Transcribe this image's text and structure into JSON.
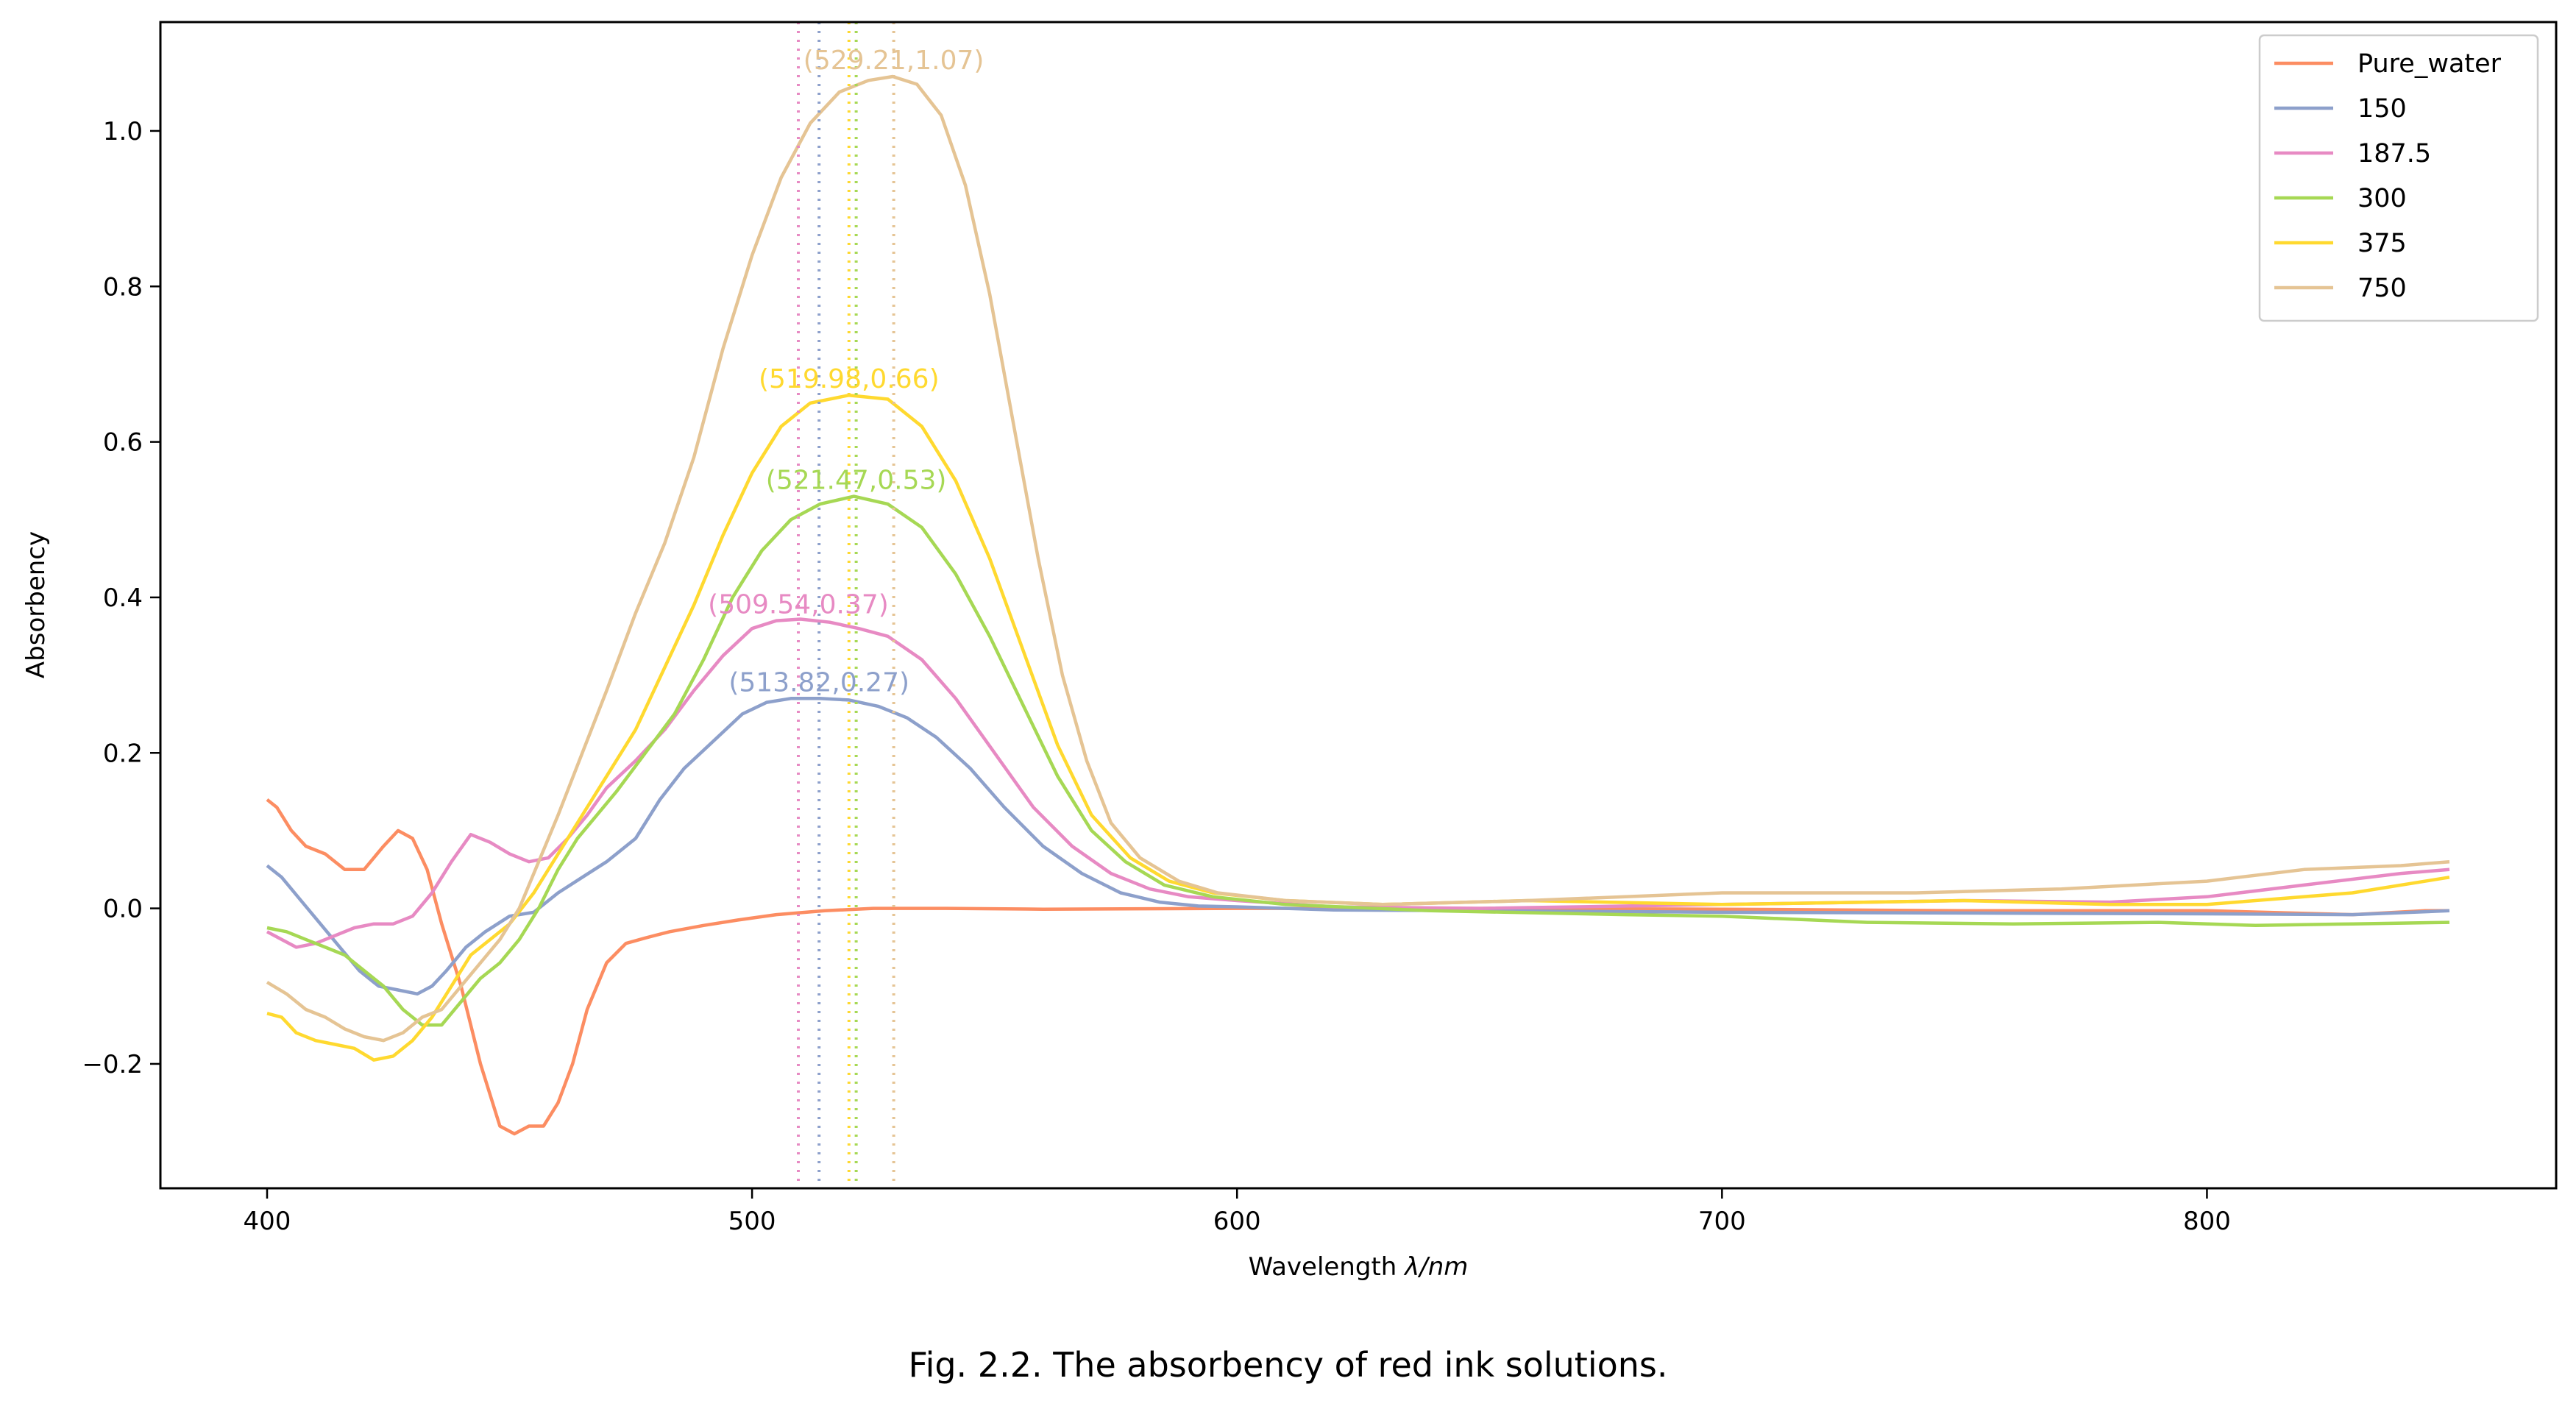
{
  "caption": "Fig. 2.2. The absorbency of red ink solutions.",
  "chart_data": {
    "type": "line",
    "xlabel": "Wavelength λ/nm",
    "xlabel_main": "Wavelength ",
    "xlabel_italic": "λ/nm",
    "ylabel": "Absorbency",
    "xlim": [
      378,
      872
    ],
    "ylim": [
      -0.36,
      1.14
    ],
    "xticks": [
      400,
      500,
      600,
      700,
      800
    ],
    "xtick_labels": [
      "400",
      "500",
      "600",
      "700",
      "800"
    ],
    "yticks": [
      -0.2,
      0.0,
      0.2,
      0.4,
      0.6,
      0.8,
      1.0
    ],
    "ytick_labels": [
      "−0.2",
      "0.0",
      "0.2",
      "0.4",
      "0.6",
      "0.8",
      "1.0"
    ],
    "grid": false,
    "legend_position": "top-right",
    "series": [
      {
        "name": "Pure_water",
        "color": "#fc8d62",
        "points": [
          [
            400,
            0.14
          ],
          [
            402,
            0.13
          ],
          [
            405,
            0.1
          ],
          [
            408,
            0.08
          ],
          [
            412,
            0.07
          ],
          [
            416,
            0.05
          ],
          [
            420,
            0.05
          ],
          [
            424,
            0.08
          ],
          [
            427,
            0.1
          ],
          [
            430,
            0.09
          ],
          [
            433,
            0.05
          ],
          [
            436,
            -0.02
          ],
          [
            440,
            -0.1
          ],
          [
            444,
            -0.2
          ],
          [
            448,
            -0.28
          ],
          [
            451,
            -0.29
          ],
          [
            454,
            -0.28
          ],
          [
            457,
            -0.28
          ],
          [
            460,
            -0.25
          ],
          [
            463,
            -0.2
          ],
          [
            466,
            -0.13
          ],
          [
            470,
            -0.07
          ],
          [
            474,
            -0.045
          ],
          [
            478,
            -0.038
          ],
          [
            483,
            -0.03
          ],
          [
            490,
            -0.022
          ],
          [
            497,
            -0.015
          ],
          [
            505,
            -0.008
          ],
          [
            515,
            -0.003
          ],
          [
            525,
            0.0
          ],
          [
            540,
            0.0
          ],
          [
            560,
            -0.001
          ],
          [
            600,
            0.0
          ],
          [
            650,
            0.0
          ],
          [
            700,
            -0.001
          ],
          [
            750,
            -0.003
          ],
          [
            800,
            -0.003
          ],
          [
            830,
            -0.008
          ],
          [
            845,
            -0.003
          ],
          [
            850,
            -0.003
          ]
        ]
      },
      {
        "name": "150",
        "color": "#8da0cb",
        "points": [
          [
            400,
            0.055
          ],
          [
            403,
            0.04
          ],
          [
            407,
            0.01
          ],
          [
            411,
            -0.02
          ],
          [
            415,
            -0.05
          ],
          [
            419,
            -0.08
          ],
          [
            423,
            -0.1
          ],
          [
            427,
            -0.105
          ],
          [
            431,
            -0.11
          ],
          [
            434,
            -0.1
          ],
          [
            437,
            -0.08
          ],
          [
            441,
            -0.05
          ],
          [
            445,
            -0.03
          ],
          [
            450,
            -0.01
          ],
          [
            455,
            -0.005
          ],
          [
            460,
            0.02
          ],
          [
            465,
            0.04
          ],
          [
            470,
            0.06
          ],
          [
            476,
            0.09
          ],
          [
            481,
            0.14
          ],
          [
            486,
            0.18
          ],
          [
            492,
            0.215
          ],
          [
            498,
            0.25
          ],
          [
            503,
            0.265
          ],
          [
            508,
            0.27
          ],
          [
            514,
            0.27
          ],
          [
            520,
            0.268
          ],
          [
            526,
            0.26
          ],
          [
            532,
            0.245
          ],
          [
            538,
            0.22
          ],
          [
            545,
            0.18
          ],
          [
            552,
            0.13
          ],
          [
            560,
            0.08
          ],
          [
            568,
            0.045
          ],
          [
            576,
            0.02
          ],
          [
            584,
            0.008
          ],
          [
            592,
            0.003
          ],
          [
            600,
            0.002
          ],
          [
            620,
            -0.002
          ],
          [
            650,
            -0.003
          ],
          [
            700,
            -0.005
          ],
          [
            750,
            -0.006
          ],
          [
            800,
            -0.007
          ],
          [
            830,
            -0.008
          ],
          [
            850,
            -0.003
          ]
        ]
      },
      {
        "name": "187.5",
        "color": "#e78ac3",
        "points": [
          [
            400,
            -0.03
          ],
          [
            403,
            -0.04
          ],
          [
            406,
            -0.05
          ],
          [
            410,
            -0.045
          ],
          [
            414,
            -0.035
          ],
          [
            418,
            -0.025
          ],
          [
            422,
            -0.02
          ],
          [
            426,
            -0.02
          ],
          [
            430,
            -0.01
          ],
          [
            434,
            0.02
          ],
          [
            438,
            0.06
          ],
          [
            442,
            0.095
          ],
          [
            446,
            0.085
          ],
          [
            450,
            0.07
          ],
          [
            454,
            0.06
          ],
          [
            458,
            0.065
          ],
          [
            462,
            0.09
          ],
          [
            466,
            0.12
          ],
          [
            470,
            0.155
          ],
          [
            476,
            0.19
          ],
          [
            482,
            0.23
          ],
          [
            488,
            0.28
          ],
          [
            494,
            0.325
          ],
          [
            500,
            0.36
          ],
          [
            505,
            0.37
          ],
          [
            510,
            0.372
          ],
          [
            516,
            0.368
          ],
          [
            522,
            0.36
          ],
          [
            528,
            0.35
          ],
          [
            535,
            0.32
          ],
          [
            542,
            0.27
          ],
          [
            550,
            0.2
          ],
          [
            558,
            0.13
          ],
          [
            566,
            0.08
          ],
          [
            574,
            0.045
          ],
          [
            582,
            0.025
          ],
          [
            590,
            0.015
          ],
          [
            600,
            0.01
          ],
          [
            620,
            0.002
          ],
          [
            650,
            0.0
          ],
          [
            700,
            0.005
          ],
          [
            750,
            0.01
          ],
          [
            780,
            0.008
          ],
          [
            800,
            0.015
          ],
          [
            820,
            0.03
          ],
          [
            840,
            0.045
          ],
          [
            850,
            0.05
          ]
        ]
      },
      {
        "name": "300",
        "color": "#a6d854",
        "points": [
          [
            400,
            -0.025
          ],
          [
            404,
            -0.03
          ],
          [
            408,
            -0.04
          ],
          [
            412,
            -0.05
          ],
          [
            416,
            -0.06
          ],
          [
            420,
            -0.08
          ],
          [
            424,
            -0.1
          ],
          [
            428,
            -0.13
          ],
          [
            432,
            -0.15
          ],
          [
            436,
            -0.15
          ],
          [
            440,
            -0.12
          ],
          [
            444,
            -0.09
          ],
          [
            448,
            -0.07
          ],
          [
            452,
            -0.04
          ],
          [
            456,
            0.0
          ],
          [
            460,
            0.05
          ],
          [
            464,
            0.09
          ],
          [
            468,
            0.12
          ],
          [
            472,
            0.15
          ],
          [
            478,
            0.2
          ],
          [
            484,
            0.25
          ],
          [
            490,
            0.32
          ],
          [
            496,
            0.4
          ],
          [
            502,
            0.46
          ],
          [
            508,
            0.5
          ],
          [
            514,
            0.52
          ],
          [
            521,
            0.53
          ],
          [
            528,
            0.52
          ],
          [
            535,
            0.49
          ],
          [
            542,
            0.43
          ],
          [
            549,
            0.35
          ],
          [
            556,
            0.26
          ],
          [
            563,
            0.17
          ],
          [
            570,
            0.1
          ],
          [
            577,
            0.06
          ],
          [
            585,
            0.03
          ],
          [
            595,
            0.015
          ],
          [
            610,
            0.005
          ],
          [
            640,
            -0.003
          ],
          [
            680,
            -0.008
          ],
          [
            700,
            -0.01
          ],
          [
            730,
            -0.018
          ],
          [
            760,
            -0.02
          ],
          [
            790,
            -0.018
          ],
          [
            810,
            -0.022
          ],
          [
            830,
            -0.02
          ],
          [
            850,
            -0.018
          ]
        ]
      },
      {
        "name": "375",
        "color": "#ffd92f",
        "points": [
          [
            400,
            -0.135
          ],
          [
            403,
            -0.14
          ],
          [
            406,
            -0.16
          ],
          [
            410,
            -0.17
          ],
          [
            414,
            -0.175
          ],
          [
            418,
            -0.18
          ],
          [
            422,
            -0.195
          ],
          [
            426,
            -0.19
          ],
          [
            430,
            -0.17
          ],
          [
            434,
            -0.14
          ],
          [
            438,
            -0.1
          ],
          [
            442,
            -0.06
          ],
          [
            446,
            -0.04
          ],
          [
            450,
            -0.02
          ],
          [
            455,
            0.02
          ],
          [
            460,
            0.07
          ],
          [
            465,
            0.12
          ],
          [
            470,
            0.17
          ],
          [
            476,
            0.23
          ],
          [
            482,
            0.31
          ],
          [
            488,
            0.39
          ],
          [
            494,
            0.48
          ],
          [
            500,
            0.56
          ],
          [
            506,
            0.62
          ],
          [
            512,
            0.65
          ],
          [
            520,
            0.66
          ],
          [
            528,
            0.655
          ],
          [
            535,
            0.62
          ],
          [
            542,
            0.55
          ],
          [
            549,
            0.45
          ],
          [
            556,
            0.33
          ],
          [
            563,
            0.21
          ],
          [
            570,
            0.12
          ],
          [
            578,
            0.065
          ],
          [
            586,
            0.035
          ],
          [
            595,
            0.02
          ],
          [
            610,
            0.01
          ],
          [
            630,
            0.005
          ],
          [
            660,
            0.01
          ],
          [
            700,
            0.005
          ],
          [
            750,
            0.01
          ],
          [
            780,
            0.005
          ],
          [
            800,
            0.005
          ],
          [
            830,
            0.02
          ],
          [
            850,
            0.04
          ]
        ]
      },
      {
        "name": "750",
        "color": "#e5c494",
        "points": [
          [
            400,
            -0.095
          ],
          [
            404,
            -0.11
          ],
          [
            408,
            -0.13
          ],
          [
            412,
            -0.14
          ],
          [
            416,
            -0.155
          ],
          [
            420,
            -0.165
          ],
          [
            424,
            -0.17
          ],
          [
            428,
            -0.16
          ],
          [
            432,
            -0.14
          ],
          [
            436,
            -0.13
          ],
          [
            440,
            -0.1
          ],
          [
            444,
            -0.07
          ],
          [
            448,
            -0.04
          ],
          [
            452,
            0.0
          ],
          [
            456,
            0.06
          ],
          [
            460,
            0.12
          ],
          [
            465,
            0.2
          ],
          [
            470,
            0.28
          ],
          [
            476,
            0.38
          ],
          [
            482,
            0.47
          ],
          [
            488,
            0.58
          ],
          [
            494,
            0.72
          ],
          [
            500,
            0.84
          ],
          [
            506,
            0.94
          ],
          [
            512,
            1.01
          ],
          [
            518,
            1.05
          ],
          [
            524,
            1.065
          ],
          [
            529,
            1.07
          ],
          [
            534,
            1.06
          ],
          [
            539,
            1.02
          ],
          [
            544,
            0.93
          ],
          [
            549,
            0.79
          ],
          [
            554,
            0.62
          ],
          [
            559,
            0.45
          ],
          [
            564,
            0.3
          ],
          [
            569,
            0.19
          ],
          [
            574,
            0.11
          ],
          [
            580,
            0.065
          ],
          [
            588,
            0.035
          ],
          [
            596,
            0.02
          ],
          [
            610,
            0.01
          ],
          [
            630,
            0.005
          ],
          [
            660,
            0.01
          ],
          [
            700,
            0.02
          ],
          [
            740,
            0.02
          ],
          [
            770,
            0.025
          ],
          [
            800,
            0.035
          ],
          [
            820,
            0.05
          ],
          [
            840,
            0.055
          ],
          [
            850,
            0.06
          ]
        ]
      }
    ],
    "peaks": [
      {
        "series": "150",
        "x": 513.82,
        "y": 0.27,
        "label": "(513.82,0.27)",
        "color": "#8da0cb"
      },
      {
        "series": "187.5",
        "x": 509.54,
        "y": 0.37,
        "label": "(509.54,0.37)",
        "color": "#e78ac3"
      },
      {
        "series": "300",
        "x": 521.47,
        "y": 0.53,
        "label": "(521.47,0.53)",
        "color": "#a6d854"
      },
      {
        "series": "375",
        "x": 519.98,
        "y": 0.66,
        "label": "(519.98,0.66)",
        "color": "#ffd92f"
      },
      {
        "series": "750",
        "x": 529.21,
        "y": 1.07,
        "label": "(529.21,1.07)",
        "color": "#e5c494"
      }
    ]
  }
}
